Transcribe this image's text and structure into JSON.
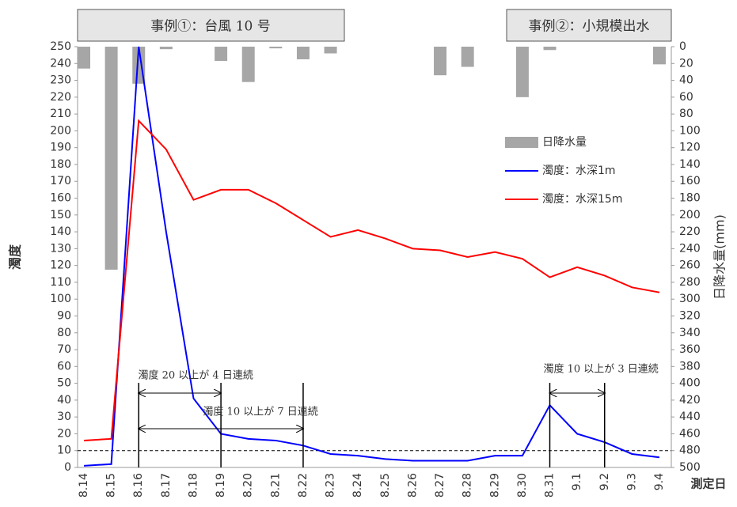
{
  "chart_data": {
    "type": "bar_line",
    "headers": [
      "事例①：台風 10 号",
      "事例②：小規模出水"
    ],
    "ylabel": "濁度",
    "y2label": "日降水量(mm)",
    "xlabel": "測定日",
    "categories": [
      "8.14",
      "8.15",
      "8.16",
      "8.17",
      "8.18",
      "8.19",
      "8.20",
      "8.21",
      "8.22",
      "8.23",
      "8.24",
      "8.25",
      "8.26",
      "8.27",
      "8.28",
      "8.29",
      "8.30",
      "8.31",
      "9.1",
      "9.2",
      "9.3",
      "9.4"
    ],
    "series": [
      {
        "name": "日降水量",
        "kind": "bar",
        "axis": "y2",
        "color": "#a6a6a6",
        "values": [
          26,
          265,
          44,
          3,
          0,
          17,
          42,
          2,
          15,
          8,
          0,
          0,
          0,
          34,
          24,
          0,
          60,
          4,
          0,
          0,
          0,
          21
        ]
      },
      {
        "name": "濁度：水深1m",
        "kind": "line",
        "color": "#0000ff",
        "values": [
          1,
          2,
          250,
          140,
          41,
          20,
          17,
          16,
          13,
          8,
          7,
          5,
          4,
          4,
          4,
          7,
          7,
          37,
          20,
          15,
          8,
          6
        ]
      },
      {
        "name": "濁度：水深15m",
        "kind": "line",
        "color": "#ff0000",
        "values": [
          16,
          17,
          206,
          189,
          159,
          165,
          165,
          157,
          147,
          137,
          141,
          136,
          130,
          129,
          125,
          128,
          124,
          113,
          119,
          114,
          107,
          104
        ]
      }
    ],
    "reference_line": 10,
    "annotations": [
      "濁度 20 以上が 4 日連続",
      "濁度 10 以上が 7 日連続",
      "濁度 10 以上が 3 日連続"
    ],
    "ylim": [
      0,
      250
    ],
    "yticks": [
      0,
      10,
      20,
      30,
      40,
      50,
      60,
      70,
      80,
      90,
      100,
      110,
      120,
      130,
      140,
      150,
      160,
      170,
      180,
      190,
      200,
      210,
      220,
      230,
      240,
      250
    ],
    "y2lim": [
      0,
      500
    ],
    "y2_inverted": true,
    "y2ticks": [
      0,
      20,
      40,
      60,
      80,
      100,
      120,
      140,
      160,
      180,
      200,
      220,
      240,
      260,
      280,
      300,
      320,
      340,
      360,
      380,
      400,
      420,
      440,
      460,
      480,
      500
    ],
    "grid": false
  }
}
